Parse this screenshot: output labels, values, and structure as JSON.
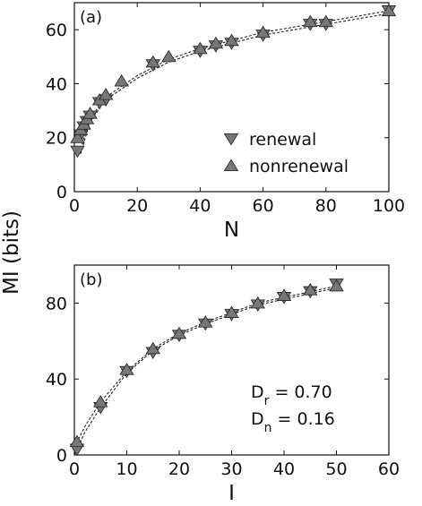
{
  "ylabel": "MI (bits)",
  "chart_data": [
    {
      "type": "scatter",
      "panel_label": "(a)",
      "xlabel": "N",
      "xlim": [
        0,
        100
      ],
      "ylim": [
        0,
        70
      ],
      "xticks": [
        0,
        20,
        40,
        60,
        80,
        100
      ],
      "yticks": [
        0,
        20,
        40,
        60
      ],
      "legend_position": "lower-right",
      "series": [
        {
          "name": "renewal",
          "marker": "triangle-down",
          "x": [
            1,
            2,
            3,
            4,
            5,
            8,
            10,
            25,
            40,
            45,
            50,
            60,
            75,
            80,
            100
          ],
          "y": [
            15,
            21,
            24,
            26,
            28,
            33,
            34,
            47,
            52,
            54,
            55,
            58,
            62,
            62,
            67
          ]
        },
        {
          "name": "nonrenewal",
          "marker": "triangle-up",
          "x": [
            1,
            2,
            3,
            4,
            5,
            8,
            10,
            15,
            25,
            30,
            40,
            45,
            50,
            60,
            75,
            80,
            100
          ],
          "y": [
            20,
            23,
            25,
            27,
            29,
            34,
            36,
            41,
            48,
            50,
            53,
            55,
            56,
            59,
            63,
            63,
            67
          ]
        }
      ],
      "fits": [
        {
          "x": [
            2,
            5,
            10,
            20,
            30,
            40,
            50,
            60,
            70,
            80,
            90,
            100
          ],
          "y": [
            14,
            26,
            34,
            42,
            48,
            52,
            55,
            58,
            60,
            62,
            64,
            66
          ]
        },
        {
          "x": [
            2,
            5,
            10,
            20,
            30,
            40,
            50,
            60,
            70,
            80,
            90,
            100
          ],
          "y": [
            16,
            27,
            35,
            43,
            49,
            53,
            56,
            59,
            61,
            63,
            65,
            67
          ]
        }
      ]
    },
    {
      "type": "scatter",
      "panel_label": "(b)",
      "xlabel": "I",
      "xlim": [
        0,
        60
      ],
      "ylim": [
        0,
        100
      ],
      "xticks": [
        0,
        10,
        20,
        30,
        40,
        50,
        60
      ],
      "yticks": [
        0,
        40,
        80
      ],
      "annotations": [
        "D_r = 0.70",
        "D_n = 0.16"
      ],
      "series": [
        {
          "name": "renewal",
          "marker": "triangle-down",
          "x": [
            0.5,
            5,
            10,
            15,
            20,
            25,
            30,
            35,
            40,
            45,
            50
          ],
          "y": [
            3,
            25,
            44,
            54,
            63,
            69,
            74,
            79,
            83,
            86,
            90
          ]
        },
        {
          "name": "nonrenewal",
          "marker": "triangle-up",
          "x": [
            0.5,
            5,
            10,
            15,
            20,
            25,
            30,
            35,
            40,
            45,
            50
          ],
          "y": [
            7,
            28,
            45,
            56,
            64,
            70,
            75,
            80,
            84,
            87,
            89
          ]
        }
      ],
      "fits": [
        {
          "x": [
            0,
            2,
            5,
            10,
            15,
            20,
            25,
            30,
            35,
            40,
            45,
            50
          ],
          "y": [
            0,
            12,
            25,
            43,
            55,
            63,
            69,
            74,
            79,
            82,
            85,
            88
          ]
        },
        {
          "x": [
            0,
            2,
            5,
            10,
            15,
            20,
            25,
            30,
            35,
            40,
            45,
            50
          ],
          "y": [
            4,
            15,
            28,
            44,
            56,
            64,
            70,
            75,
            80,
            83,
            86,
            89
          ]
        }
      ]
    }
  ]
}
